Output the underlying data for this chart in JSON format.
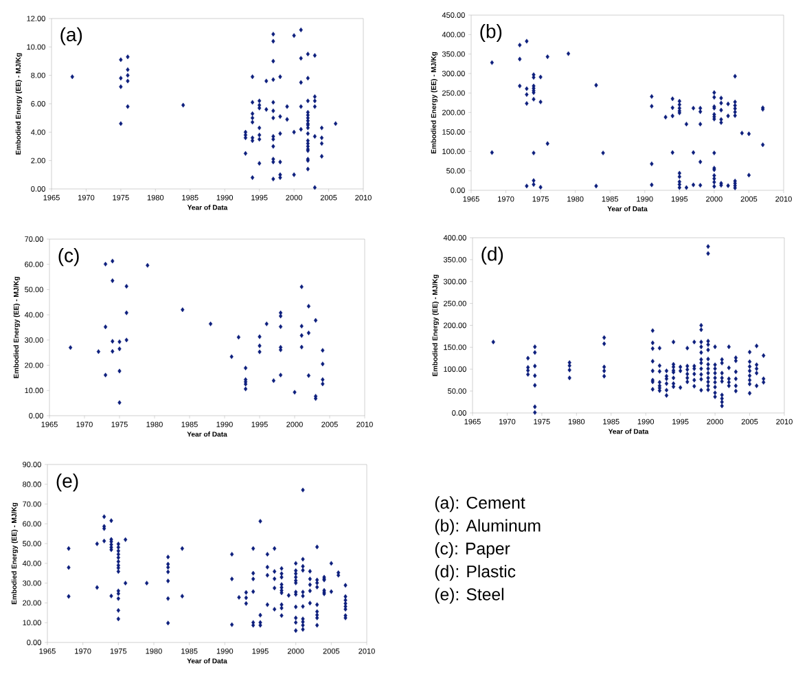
{
  "chart_data": [
    {
      "type": "scatter",
      "xlabel": "Year of Data",
      "ylabel": "Embodied Energy (EE) - MJ/Kg",
      "annotations": [
        "(a)"
      ],
      "marker": "diamond",
      "color": "#0d1f7d",
      "xlim": [
        1965,
        2010
      ],
      "xticks": [
        1965,
        1970,
        1975,
        1980,
        1985,
        1990,
        1995,
        2000,
        2005,
        2010
      ],
      "ylim": [
        0,
        12
      ],
      "yticks": [
        {
          "value": 0,
          "label": "0.00"
        },
        {
          "value": 2,
          "label": "2.00"
        },
        {
          "value": 4,
          "label": "4.00"
        },
        {
          "value": 6,
          "label": "6.00"
        },
        {
          "value": 8,
          "label": "8.00"
        },
        {
          "value": 10,
          "label": "10.00"
        },
        {
          "value": 12,
          "label": "12.00"
        }
      ],
      "x": [
        1968,
        1975,
        1975,
        1975,
        1975,
        1976,
        1976,
        1976,
        1976,
        1976,
        1984,
        1993,
        1993,
        1993,
        1993,
        1994,
        1994,
        1994,
        1994,
        1994,
        1994,
        1994,
        1994,
        1995,
        1995,
        1995,
        1995,
        1995,
        1995,
        1995,
        1996,
        1996,
        1997,
        1997,
        1997,
        1997,
        1997,
        1997,
        1997,
        1997,
        1997,
        1997,
        1997,
        1997,
        1997,
        1998,
        1998,
        1998,
        1998,
        1998,
        1998,
        1999,
        1999,
        2000,
        2000,
        2000,
        2001,
        2001,
        2001,
        2001,
        2001,
        2002,
        2002,
        2002,
        2002,
        2002,
        2002,
        2002,
        2002,
        2002,
        2002,
        2002,
        2002,
        2002,
        2002,
        2002,
        2002,
        2002,
        2002,
        2002,
        2003,
        2003,
        2003,
        2003,
        2003,
        2003,
        2004,
        2004,
        2004,
        2004,
        2006
      ],
      "values": [
        7.9,
        9.1,
        7.8,
        7.2,
        4.6,
        9.3,
        8.4,
        8.0,
        7.6,
        5.8,
        5.9,
        4.0,
        3.8,
        3.6,
        2.5,
        7.9,
        6.1,
        5.3,
        5.0,
        4.7,
        3.6,
        3.4,
        0.8,
        6.2,
        5.9,
        5.7,
        4.3,
        3.8,
        3.5,
        1.8,
        7.6,
        5.6,
        10.9,
        10.4,
        9.0,
        7.7,
        6.1,
        5.5,
        5.0,
        3.7,
        3.5,
        3.0,
        2.1,
        1.9,
        0.7,
        7.9,
        5.1,
        3.9,
        1.9,
        1.0,
        0.8,
        5.8,
        4.9,
        10.8,
        4.0,
        1.0,
        11.2,
        9.2,
        7.5,
        5.8,
        4.2,
        9.5,
        7.8,
        6.2,
        5.4,
        5.2,
        5.0,
        4.8,
        4.6,
        4.5,
        4.3,
        3.9,
        3.4,
        3.2,
        3.0,
        2.8,
        2.7,
        2.1,
        2.0,
        1.4,
        9.4,
        6.5,
        6.2,
        5.8,
        3.7,
        0.1,
        4.3,
        3.6,
        3.2,
        2.3,
        4.6
      ]
    },
    {
      "type": "scatter",
      "xlabel": "Year of Data",
      "ylabel": "Embodied Energy (EE) - MJ/Kg",
      "annotations": [
        "(b)"
      ],
      "marker": "diamond",
      "color": "#0d1f7d",
      "xlim": [
        1965,
        2010
      ],
      "xticks": [
        1965,
        1970,
        1975,
        1980,
        1985,
        1990,
        1995,
        2000,
        2005,
        2010
      ],
      "ylim": [
        0,
        450
      ],
      "yticks": [
        {
          "value": 0,
          "label": "0.00"
        },
        {
          "value": 50,
          "label": "50.00"
        },
        {
          "value": 100,
          "label": "100.00"
        },
        {
          "value": 150,
          "label": "150.00"
        },
        {
          "value": 200,
          "label": "200.00"
        },
        {
          "value": 250,
          "label": "250.00"
        },
        {
          "value": 300,
          "label": "300.00"
        },
        {
          "value": 350,
          "label": "350.00"
        },
        {
          "value": 400,
          "label": "400.00"
        },
        {
          "value": 450,
          "label": "450.00"
        }
      ],
      "x": [
        1968,
        1968,
        1972,
        1972,
        1972,
        1973,
        1973,
        1973,
        1973,
        1973,
        1974,
        1974,
        1974,
        1974,
        1974,
        1974,
        1974,
        1974,
        1974,
        1974,
        1975,
        1975,
        1975,
        1976,
        1976,
        1979,
        1983,
        1983,
        1984,
        1991,
        1991,
        1991,
        1991,
        1993,
        1994,
        1994,
        1994,
        1994,
        1995,
        1995,
        1995,
        1995,
        1995,
        1995,
        1995,
        1995,
        1995,
        1995,
        1996,
        1996,
        1997,
        1997,
        1997,
        1998,
        1998,
        1998,
        1998,
        1998,
        2000,
        2000,
        2000,
        2000,
        2000,
        2000,
        2000,
        2000,
        2000,
        2000,
        2000,
        2000,
        2000,
        2000,
        2001,
        2001,
        2001,
        2001,
        2001,
        2001,
        2001,
        2002,
        2002,
        2002,
        2003,
        2003,
        2003,
        2003,
        2003,
        2003,
        2003,
        2003,
        2003,
        2003,
        2004,
        2005,
        2005,
        2007,
        2007,
        2007
      ],
      "values": [
        328,
        97,
        373,
        337,
        268,
        383,
        261,
        246,
        223,
        11,
        297,
        290,
        268,
        262,
        256,
        251,
        234,
        96,
        25,
        15,
        291,
        227,
        8,
        343,
        120,
        351,
        270,
        11,
        96,
        241,
        216,
        68,
        14,
        188,
        235,
        212,
        191,
        97,
        229,
        220,
        211,
        204,
        199,
        44,
        35,
        22,
        15,
        7,
        170,
        7,
        211,
        97,
        14,
        211,
        202,
        170,
        73,
        13,
        251,
        239,
        215,
        211,
        195,
        189,
        183,
        96,
        57,
        53,
        38,
        30,
        21,
        10,
        237,
        224,
        206,
        182,
        174,
        18,
        13,
        222,
        191,
        12,
        293,
        227,
        218,
        210,
        201,
        192,
        24,
        18,
        12,
        6,
        147,
        145,
        39,
        212,
        208,
        117
      ]
    },
    {
      "type": "scatter",
      "xlabel": "Year of Data",
      "ylabel": "Embodied Energy (EE) - MJ/Kg",
      "annotations": [
        "(c)"
      ],
      "marker": "diamond",
      "color": "#0d1f7d",
      "xlim": [
        1965,
        2010
      ],
      "xticks": [
        1965,
        1970,
        1975,
        1980,
        1985,
        1990,
        1995,
        2000,
        2005,
        2010
      ],
      "ylim": [
        0,
        70
      ],
      "yticks": [
        {
          "value": 0,
          "label": "0.00"
        },
        {
          "value": 10,
          "label": "10.00"
        },
        {
          "value": 20,
          "label": "20.00"
        },
        {
          "value": 30,
          "label": "30.00"
        },
        {
          "value": 40,
          "label": "40.00"
        },
        {
          "value": 50,
          "label": "50.00"
        },
        {
          "value": 60,
          "label": "60.00"
        },
        {
          "value": 70,
          "label": "70.00"
        }
      ],
      "x": [
        1968,
        1972,
        1973,
        1973,
        1973,
        1974,
        1974,
        1974,
        1974,
        1975,
        1975,
        1975,
        1975,
        1976,
        1976,
        1976,
        1979,
        1984,
        1988,
        1991,
        1992,
        1993,
        1993,
        1993,
        1993,
        1993,
        1995,
        1995,
        1995,
        1996,
        1997,
        1998,
        1998,
        1998,
        1998,
        1998,
        1998,
        2000,
        2001,
        2001,
        2001,
        2001,
        2002,
        2002,
        2002,
        2003,
        2003,
        2003,
        2004,
        2004,
        2004,
        2004
      ],
      "values": [
        27.0,
        25.4,
        60.1,
        35.2,
        16.1,
        61.3,
        53.5,
        29.5,
        25.5,
        29.3,
        26.5,
        17.7,
        5.2,
        51.3,
        40.8,
        30.0,
        59.6,
        42.0,
        36.4,
        23.4,
        31.1,
        18.9,
        14.3,
        13.4,
        12.5,
        10.6,
        31.3,
        27.7,
        25.3,
        36.4,
        13.9,
        40.8,
        39.5,
        35.3,
        27.1,
        26.1,
        16.1,
        9.3,
        51.1,
        35.5,
        31.8,
        27.2,
        43.4,
        32.8,
        15.9,
        37.8,
        7.7,
        6.8,
        25.9,
        20.5,
        14.3,
        12.6
      ]
    },
    {
      "type": "scatter",
      "xlabel": "Year of Data",
      "ylabel": "Embodied Energy (EE) - MJ/Kg",
      "annotations": [
        "(d)"
      ],
      "marker": "diamond",
      "color": "#0d1f7d",
      "xlim": [
        1965,
        2010
      ],
      "xticks": [
        1965,
        1970,
        1975,
        1980,
        1985,
        1990,
        1995,
        2000,
        2005,
        2010
      ],
      "ylim": [
        0,
        400
      ],
      "yticks": [
        {
          "value": 0,
          "label": "0.00"
        },
        {
          "value": 50,
          "label": "50.00"
        },
        {
          "value": 100,
          "label": "100.00"
        },
        {
          "value": 150,
          "label": "150.00"
        },
        {
          "value": 200,
          "label": "200.00"
        },
        {
          "value": 250,
          "label": "250.00"
        },
        {
          "value": 300,
          "label": "300.00"
        },
        {
          "value": 350,
          "label": "350.00"
        },
        {
          "value": 400,
          "label": "400.00"
        }
      ],
      "x": [
        1968,
        1973,
        1973,
        1973,
        1973,
        1974,
        1974,
        1974,
        1974,
        1974,
        1974,
        1974,
        1979,
        1979,
        1979,
        1979,
        1984,
        1984,
        1984,
        1984,
        1984,
        1991,
        1991,
        1991,
        1991,
        1991,
        1991,
        1991,
        1991,
        1992,
        1992,
        1992,
        1992,
        1992,
        1992,
        1992,
        1993,
        1993,
        1993,
        1993,
        1993,
        1993,
        1994,
        1994,
        1994,
        1994,
        1994,
        1994,
        1994,
        1994,
        1995,
        1995,
        1995,
        1996,
        1996,
        1996,
        1996,
        1996,
        1996,
        1997,
        1997,
        1997,
        1997,
        1997,
        1997,
        1998,
        1998,
        1998,
        1998,
        1998,
        1998,
        1998,
        1998,
        1998,
        1998,
        1998,
        1999,
        1999,
        1999,
        1999,
        1999,
        1999,
        1999,
        1999,
        1999,
        1999,
        1999,
        1999,
        1999,
        2000,
        2000,
        2000,
        2000,
        2000,
        2000,
        2000,
        2000,
        2000,
        2001,
        2001,
        2001,
        2001,
        2001,
        2001,
        2001,
        2001,
        2001,
        2002,
        2002,
        2002,
        2002,
        2002,
        2003,
        2003,
        2003,
        2003,
        2003,
        2003,
        2005,
        2005,
        2005,
        2005,
        2005,
        2005,
        2005,
        2005,
        2006,
        2006,
        2006,
        2006,
        2006,
        2007,
        2007,
        2007
      ],
      "values": [
        162,
        125,
        104,
        97,
        88,
        151,
        138,
        107,
        85,
        63,
        14,
        1,
        115,
        108,
        98,
        80,
        172,
        158,
        105,
        96,
        84,
        188,
        160,
        147,
        118,
        96,
        75,
        71,
        54,
        148,
        108,
        95,
        70,
        62,
        57,
        51,
        96,
        84,
        78,
        67,
        52,
        40,
        162,
        111,
        105,
        97,
        93,
        80,
        67,
        60,
        105,
        96,
        58,
        148,
        107,
        99,
        89,
        80,
        71,
        162,
        107,
        101,
        89,
        75,
        61,
        200,
        190,
        162,
        151,
        138,
        122,
        114,
        101,
        88,
        77,
        52,
        380,
        364,
        164,
        156,
        144,
        123,
        111,
        101,
        91,
        80,
        71,
        62,
        53,
        151,
        110,
        101,
        91,
        80,
        70,
        59,
        46,
        37,
        122,
        114,
        91,
        80,
        72,
        41,
        33,
        25,
        16,
        151,
        103,
        78,
        70,
        62,
        126,
        119,
        94,
        78,
        62,
        50,
        139,
        117,
        106,
        96,
        85,
        75,
        66,
        45,
        153,
        110,
        101,
        91,
        62,
        131,
        78,
        70
      ]
    },
    {
      "type": "scatter",
      "xlabel": "Year of Data",
      "ylabel": "Embodied Energy (EE) - MJ/Kg",
      "annotations": [
        "(e)"
      ],
      "marker": "diamond",
      "color": "#0d1f7d",
      "xlim": [
        1965,
        2010
      ],
      "xticks": [
        1965,
        1970,
        1975,
        1980,
        1985,
        1990,
        1995,
        2000,
        2005,
        2010
      ],
      "ylim": [
        0,
        90
      ],
      "yticks": [
        {
          "value": 0,
          "label": "0.00"
        },
        {
          "value": 10,
          "label": "10.00"
        },
        {
          "value": 20,
          "label": "20.00"
        },
        {
          "value": 30,
          "label": "30.00"
        },
        {
          "value": 40,
          "label": "40.00"
        },
        {
          "value": 50,
          "label": "50.00"
        },
        {
          "value": 60,
          "label": "60.00"
        },
        {
          "value": 70,
          "label": "70.00"
        },
        {
          "value": 80,
          "label": "80.00"
        },
        {
          "value": 90,
          "label": "90.00"
        }
      ],
      "x": [
        1968,
        1968,
        1968,
        1972,
        1972,
        1973,
        1973,
        1973,
        1973,
        1974,
        1974,
        1974,
        1974,
        1974,
        1974,
        1974,
        1975,
        1975,
        1975,
        1975,
        1975,
        1975,
        1975,
        1975,
        1975,
        1975,
        1975,
        1975,
        1975,
        1975,
        1976,
        1976,
        1979,
        1982,
        1982,
        1982,
        1982,
        1982,
        1982,
        1982,
        1984,
        1984,
        1991,
        1991,
        1991,
        1992,
        1993,
        1993,
        1993,
        1994,
        1994,
        1994,
        1994,
        1994,
        1994,
        1995,
        1995,
        1995,
        1995,
        1996,
        1996,
        1996,
        1996,
        1997,
        1997,
        1997,
        1997,
        1997,
        1998,
        1998,
        1998,
        1998,
        1998,
        1998,
        1998,
        1998,
        1998,
        1998,
        1999,
        2000,
        2000,
        2000,
        2000,
        2000,
        2000,
        2000,
        2000,
        2000,
        2000,
        2000,
        2000,
        2001,
        2001,
        2001,
        2001,
        2001,
        2001,
        2001,
        2001,
        2001,
        2001,
        2001,
        2002,
        2002,
        2002,
        2002,
        2002,
        2003,
        2003,
        2003,
        2003,
        2003,
        2003,
        2003,
        2003,
        2003,
        2004,
        2004,
        2004,
        2004,
        2004,
        2004,
        2005,
        2005,
        2006,
        2006,
        2007,
        2007,
        2007,
        2007,
        2007,
        2007,
        2007,
        2007
      ],
      "values": [
        47.5,
        37.9,
        23.3,
        49.9,
        27.8,
        63.6,
        58.7,
        57.6,
        51.3,
        61.6,
        52.1,
        51.0,
        49.5,
        48.1,
        46.9,
        23.5,
        49.8,
        48.1,
        46.3,
        44.6,
        42.9,
        40.9,
        39.0,
        37.7,
        35.9,
        26.1,
        24.7,
        22.2,
        16.2,
        11.9,
        52.0,
        30.0,
        30.0,
        43.2,
        39.6,
        38.0,
        35.7,
        31.1,
        22.2,
        9.8,
        47.5,
        23.4,
        44.6,
        32.1,
        9.0,
        22.8,
        25.3,
        22.6,
        19.7,
        47.5,
        35.0,
        32.1,
        25.7,
        10.1,
        8.7,
        61.3,
        13.8,
        10.1,
        8.7,
        44.6,
        38.1,
        34.0,
        19.1,
        47.5,
        35.9,
        32.2,
        27.5,
        16.8,
        37.4,
        34.8,
        33.0,
        29.3,
        27.8,
        26.3,
        25.1,
        19.1,
        17.4,
        13.6,
        23.8,
        40.0,
        36.3,
        34.8,
        33.0,
        31.3,
        30.1,
        25.5,
        24.3,
        18.0,
        12.4,
        10.1,
        6.0,
        77.1,
        42.1,
        38.5,
        36.5,
        25.5,
        23.5,
        18.2,
        11.9,
        10.4,
        8.7,
        6.6,
        36.0,
        32.1,
        29.2,
        26.1,
        19.9,
        48.3,
        31.6,
        30.1,
        28.0,
        19.1,
        15.6,
        13.9,
        12.4,
        8.7,
        33.0,
        32.1,
        31.6,
        26.3,
        25.4,
        24.6,
        40.0,
        25.7,
        35.3,
        34.0,
        28.9,
        23.2,
        21.4,
        19.7,
        18.2,
        16.8,
        13.6,
        12.4
      ]
    },
    {
      "type": "other",
      "annotations": [
        "(a): Cement",
        "(b): Aluminum",
        "(c): Paper",
        "(d): Plastic",
        "(e): Steel"
      ]
    }
  ]
}
